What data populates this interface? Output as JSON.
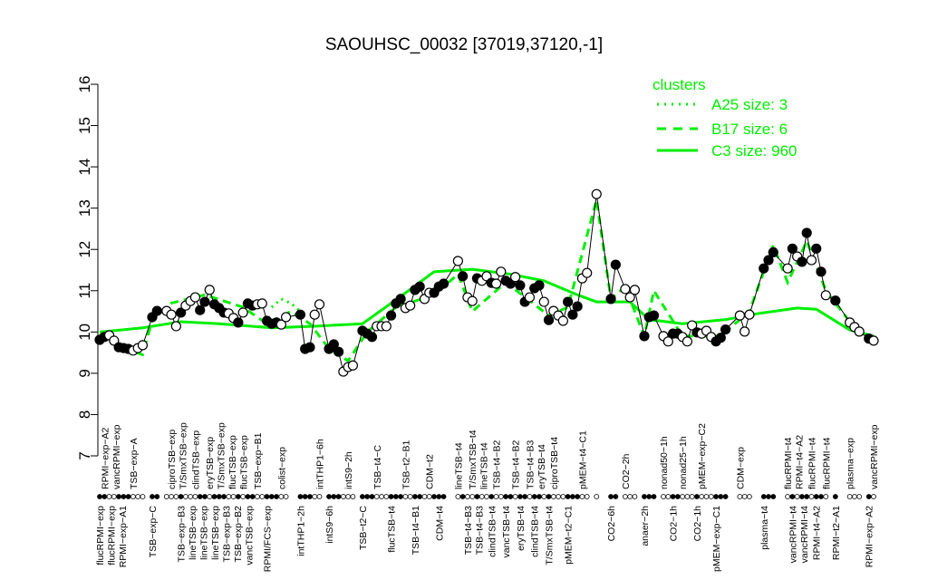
{
  "chart_data": {
    "type": "line",
    "title": "SAOUHSC_00032 [37019,37120,-1]",
    "xlabel": "",
    "ylabel": "",
    "ylim": [
      7,
      16
    ],
    "yticks": [
      7,
      8,
      9,
      10,
      11,
      12,
      13,
      14,
      15,
      16
    ],
    "xlim": [
      0,
      162
    ],
    "grid": false,
    "legend": {
      "title": "clusters",
      "placement": "top-right",
      "entries": [
        {
          "label": "A25 size: 3",
          "style": "dotted"
        },
        {
          "label": "B17 size: 6",
          "style": "dashed"
        },
        {
          "label": "C3 size: 960",
          "style": "solid"
        }
      ]
    },
    "colors": {
      "cluster": "#00ee00",
      "points": "#000000"
    },
    "points": [
      [
        0,
        9.81,
        1
      ],
      [
        1,
        9.88,
        1
      ],
      [
        2,
        9.92,
        0
      ],
      [
        3,
        9.79,
        0
      ],
      [
        4,
        9.63,
        1
      ],
      [
        5,
        9.61,
        1
      ],
      [
        6,
        9.59,
        1
      ],
      [
        7,
        9.55,
        0
      ],
      [
        8,
        9.61,
        0
      ],
      [
        9,
        9.68,
        0
      ],
      [
        11,
        10.36,
        1
      ],
      [
        12,
        10.51,
        1
      ],
      [
        14,
        10.51,
        0
      ],
      [
        15,
        10.42,
        0
      ],
      [
        16,
        10.14,
        0
      ],
      [
        17,
        10.47,
        1
      ],
      [
        18,
        10.64,
        0
      ],
      [
        19,
        10.75,
        0
      ],
      [
        20,
        10.84,
        0
      ],
      [
        21,
        10.53,
        1
      ],
      [
        22,
        10.73,
        1
      ],
      [
        23,
        11.02,
        0
      ],
      [
        24,
        10.67,
        1
      ],
      [
        25,
        10.58,
        1
      ],
      [
        26,
        10.47,
        1
      ],
      [
        27,
        10.45,
        0
      ],
      [
        28,
        10.34,
        0
      ],
      [
        29,
        10.23,
        1
      ],
      [
        30,
        10.47,
        0
      ],
      [
        31,
        10.69,
        1
      ],
      [
        32,
        10.64,
        1
      ],
      [
        33,
        10.67,
        0
      ],
      [
        34,
        10.69,
        0
      ],
      [
        35,
        10.27,
        1
      ],
      [
        36,
        10.2,
        1
      ],
      [
        37,
        10.23,
        1
      ],
      [
        38,
        10.18,
        0
      ],
      [
        39,
        10.36,
        0
      ],
      [
        42,
        10.42,
        1
      ],
      [
        43,
        9.59,
        1
      ],
      [
        44,
        9.63,
        1
      ],
      [
        45,
        10.42,
        0
      ],
      [
        46,
        10.67,
        0
      ],
      [
        48,
        9.59,
        1
      ],
      [
        49,
        9.7,
        1
      ],
      [
        50,
        9.52,
        1
      ],
      [
        51,
        9.04,
        0
      ],
      [
        52,
        9.15,
        0
      ],
      [
        53,
        9.19,
        0
      ],
      [
        55,
        10.03,
        1
      ],
      [
        56,
        9.96,
        1
      ],
      [
        57,
        9.88,
        1
      ],
      [
        58,
        10.14,
        0
      ],
      [
        59,
        10.14,
        0
      ],
      [
        60,
        10.14,
        0
      ],
      [
        61,
        10.4,
        1
      ],
      [
        62,
        10.69,
        1
      ],
      [
        63,
        10.8,
        1
      ],
      [
        64,
        10.58,
        0
      ],
      [
        65,
        10.64,
        0
      ],
      [
        66,
        11.02,
        1
      ],
      [
        67,
        11.1,
        1
      ],
      [
        68,
        10.8,
        0
      ],
      [
        69,
        10.95,
        0
      ],
      [
        70,
        10.95,
        1
      ],
      [
        71,
        11.1,
        1
      ],
      [
        72,
        11.17,
        1
      ],
      [
        75,
        11.72,
        0
      ],
      [
        76,
        11.35,
        1
      ],
      [
        77,
        10.84,
        0
      ],
      [
        78,
        10.75,
        0
      ],
      [
        79,
        11.3,
        1
      ],
      [
        80,
        11.24,
        0
      ],
      [
        81,
        11.35,
        0
      ],
      [
        82,
        11.19,
        1
      ],
      [
        83,
        11.17,
        0
      ],
      [
        84,
        11.46,
        0
      ],
      [
        85,
        11.24,
        1
      ],
      [
        86,
        11.17,
        1
      ],
      [
        87,
        11.33,
        0
      ],
      [
        88,
        11.13,
        1
      ],
      [
        89,
        10.73,
        1
      ],
      [
        90,
        10.84,
        0
      ],
      [
        91,
        11.06,
        1
      ],
      [
        92,
        11.13,
        1
      ],
      [
        93,
        10.73,
        0
      ],
      [
        94,
        10.29,
        1
      ],
      [
        95,
        10.51,
        0
      ],
      [
        96,
        10.4,
        0
      ],
      [
        97,
        10.27,
        0
      ],
      [
        98,
        10.73,
        1
      ],
      [
        99,
        10.42,
        1
      ],
      [
        100,
        10.62,
        1
      ],
      [
        101,
        11.3,
        0
      ],
      [
        102,
        11.43,
        0
      ],
      [
        104,
        13.34,
        0
      ],
      [
        107,
        10.8,
        1
      ],
      [
        108,
        11.63,
        1
      ],
      [
        110,
        11.04,
        0
      ],
      [
        111,
        10.84,
        0
      ],
      [
        112,
        11.02,
        0
      ],
      [
        114,
        9.9,
        1
      ],
      [
        115,
        10.36,
        1
      ],
      [
        116,
        10.4,
        1
      ],
      [
        118,
        9.9,
        0
      ],
      [
        119,
        9.77,
        0
      ],
      [
        120,
        9.96,
        1
      ],
      [
        121,
        9.96,
        1
      ],
      [
        122,
        9.88,
        0
      ],
      [
        123,
        9.77,
        0
      ],
      [
        124,
        10.16,
        0
      ],
      [
        125,
        9.99,
        1
      ],
      [
        126,
        9.96,
        0
      ],
      [
        127,
        10.03,
        0
      ],
      [
        128,
        9.88,
        0
      ],
      [
        129,
        9.77,
        1
      ],
      [
        130,
        9.86,
        1
      ],
      [
        131,
        10.06,
        1
      ],
      [
        134,
        10.4,
        0
      ],
      [
        135,
        10.01,
        0
      ],
      [
        136,
        10.42,
        0
      ],
      [
        139,
        11.54,
        1
      ],
      [
        140,
        11.74,
        1
      ],
      [
        141,
        11.93,
        1
      ],
      [
        144,
        11.54,
        0
      ],
      [
        145,
        12.02,
        1
      ],
      [
        146,
        11.83,
        0
      ],
      [
        147,
        11.7,
        1
      ],
      [
        148,
        12.4,
        1
      ],
      [
        149,
        11.74,
        0
      ],
      [
        150,
        12.02,
        1
      ],
      [
        151,
        11.46,
        1
      ],
      [
        152,
        10.89,
        0
      ],
      [
        154,
        10.76,
        1
      ],
      [
        157,
        10.23,
        0
      ],
      [
        158,
        10.12,
        0
      ],
      [
        159,
        10.01,
        0
      ],
      [
        161,
        9.84,
        1
      ],
      [
        162,
        9.79,
        0
      ]
    ],
    "clusters": {
      "C3": [
        [
          0,
          10.0
        ],
        [
          9,
          10.1
        ],
        [
          17,
          10.25
        ],
        [
          25,
          10.2
        ],
        [
          36,
          10.1
        ],
        [
          45,
          10.14
        ],
        [
          55,
          10.2
        ],
        [
          63,
          10.86
        ],
        [
          70,
          11.46
        ],
        [
          78,
          11.52
        ],
        [
          86,
          11.4
        ],
        [
          93,
          11.24
        ],
        [
          100,
          10.9
        ],
        [
          104,
          10.73
        ],
        [
          111,
          10.73
        ],
        [
          115,
          10.3
        ],
        [
          122,
          10.2
        ],
        [
          131,
          10.3
        ],
        [
          138,
          10.45
        ],
        [
          146,
          10.58
        ],
        [
          150,
          10.55
        ],
        [
          157,
          10.05
        ],
        [
          162,
          9.9
        ]
      ],
      "B17": [
        [
          0,
          9.95
        ],
        [
          5,
          9.6
        ],
        [
          9,
          9.45
        ],
        [
          11,
          10.3
        ],
        [
          15,
          10.7
        ],
        [
          22,
          10.9
        ],
        [
          30,
          10.6
        ],
        [
          35,
          10.2
        ],
        [
          40,
          10.5
        ],
        [
          44,
          10.2
        ],
        [
          48,
          9.6
        ],
        [
          52,
          9.3
        ],
        [
          56,
          10.0
        ],
        [
          62,
          10.6
        ],
        [
          70,
          10.9
        ],
        [
          75,
          11.4
        ],
        [
          78,
          10.5
        ],
        [
          85,
          11.2
        ],
        [
          94,
          10.4
        ],
        [
          98,
          10.6
        ],
        [
          104,
          13.2
        ],
        [
          107,
          10.8
        ],
        [
          110,
          11.1
        ],
        [
          114,
          9.9
        ],
        [
          116,
          11.0
        ],
        [
          122,
          9.9
        ],
        [
          130,
          9.9
        ],
        [
          136,
          10.5
        ],
        [
          141,
          12.1
        ],
        [
          144,
          11.2
        ],
        [
          148,
          12.2
        ],
        [
          152,
          11.0
        ],
        [
          158,
          10.1
        ],
        [
          162,
          9.8
        ]
      ],
      "A25": [
        [
          36,
          10.6
        ],
        [
          38,
          10.8
        ],
        [
          40,
          10.7
        ],
        [
          42,
          10.5
        ]
      ]
    },
    "top_labels": [
      [
        1,
        "RPMI−exp−A2"
      ],
      [
        2,
        "vancRPMI−exp"
      ],
      [
        7,
        "TSB−exp−A"
      ],
      [
        15,
        "ciproTSB−exp"
      ],
      [
        17,
        "T/SmxTSB−exp"
      ],
      [
        20,
        "clindTSB−exp"
      ],
      [
        23,
        "eryTSB−exp"
      ],
      [
        25,
        "T/SmxTSB−exp"
      ],
      [
        27,
        "flucTSB−exp"
      ],
      [
        29,
        "flucTSB−exp"
      ],
      [
        33,
        "TSB−exp−B1"
      ],
      [
        38,
        "colist−exp"
      ],
      [
        46,
        "intTHP1−6h"
      ],
      [
        52,
        "intS9−2h"
      ],
      [
        58,
        "TSB−t4−C"
      ],
      [
        64,
        "TSB−t2−B1"
      ],
      [
        69,
        "CDM−t2"
      ],
      [
        75,
        "lineTSB−t4"
      ],
      [
        78,
        "T/SmxTSB−t4"
      ],
      [
        80,
        "lineTSB−t4"
      ],
      [
        83,
        "TSB−t4−B2"
      ],
      [
        87,
        "TSB−t4−B2"
      ],
      [
        90,
        "TSB−t4−B3"
      ],
      [
        92,
        "eryTSB−t4"
      ],
      [
        95,
        "ciproTSB−t4"
      ],
      [
        101,
        "pMEM−t4−C1"
      ],
      [
        110,
        "CO2−2h"
      ],
      [
        118,
        "nonad50−1h"
      ],
      [
        122,
        "nonad25−1h"
      ],
      [
        126,
        "pMEM−exp−C2"
      ],
      [
        134,
        "CDM−exp"
      ],
      [
        144,
        "flucRPMI−t4"
      ],
      [
        146,
        "RPMI−t4−A2"
      ],
      [
        149,
        "flucRPMI−t4"
      ],
      [
        152,
        "flucRPMI−t4"
      ],
      [
        157,
        "plasma−exp"
      ],
      [
        162,
        "vancRPMI−exp"
      ]
    ],
    "bottom_labels": [
      [
        0,
        "flucRPMI−exp"
      ],
      [
        1,
        "flucRPMI−exp"
      ],
      [
        4,
        "RPMI−exp−A1"
      ],
      [
        11,
        "TSB−exp−C"
      ],
      [
        17,
        "TSB−exp−B3"
      ],
      [
        19,
        "lineTSB−exp"
      ],
      [
        21,
        "lineTSB−exp"
      ],
      [
        24,
        "lineTSB−exp"
      ],
      [
        25,
        "TSB−exp−B3"
      ],
      [
        28,
        "TSB−exp−B2"
      ],
      [
        31,
        "vancTSB−exp"
      ],
      [
        35,
        "RPMI/FCS−exp"
      ],
      [
        42,
        "intTHP1−2h"
      ],
      [
        48,
        "intS9−6h"
      ],
      [
        55,
        "TSB−t2−C"
      ],
      [
        61,
        "flucTSB−t4"
      ],
      [
        66,
        "TSB−t4−B1"
      ],
      [
        71,
        "CDM−t4"
      ],
      [
        77,
        "TSB−t4−B3"
      ],
      [
        79,
        "TSB−t4−B3"
      ],
      [
        82,
        "clindTSB−t4"
      ],
      [
        85,
        "vancTSB−t4"
      ],
      [
        88,
        "eryTSB−t4"
      ],
      [
        91,
        "clindTSB−t4"
      ],
      [
        94,
        "T/SmxTSB−t4"
      ],
      [
        98,
        "pMEM−t2−C1"
      ],
      [
        107,
        "CO2−6h"
      ],
      [
        114,
        "anaer−2h"
      ],
      [
        120,
        "CO2−1h"
      ],
      [
        125,
        "CO2−1h"
      ],
      [
        129,
        "pMEM−exp−C1"
      ],
      [
        139,
        "plasma−t4"
      ],
      [
        145,
        "vancRPMI−t4"
      ],
      [
        147,
        "vancRPMI−t4"
      ],
      [
        150,
        "RPMI−t4−A2"
      ],
      [
        154,
        "RPMI−t2−A1"
      ],
      [
        161,
        "RPMI−exp−A2"
      ]
    ]
  }
}
